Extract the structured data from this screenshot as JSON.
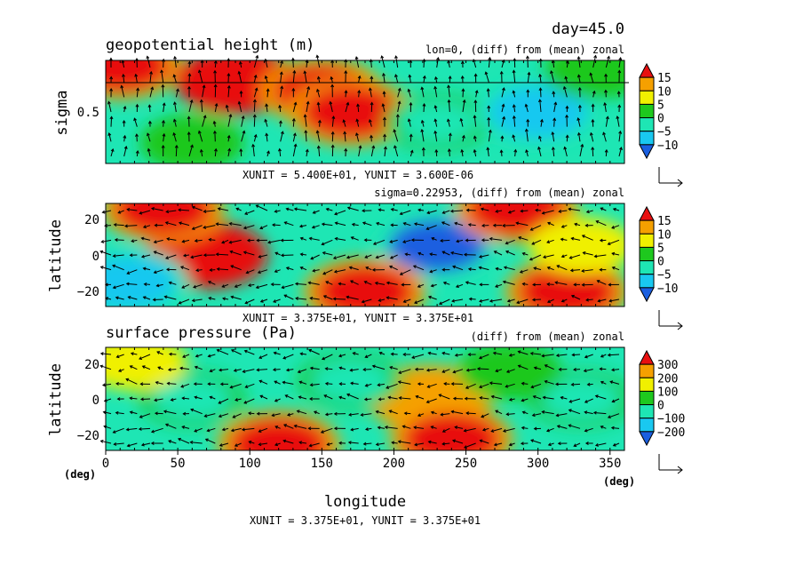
{
  "day_label": "day=45.0",
  "panels": [
    {
      "title": "geopotential height (m)",
      "subtitle": "lon=0, (diff) from (mean) zonal",
      "ylabel": "sigma",
      "yticks": [
        "0.5"
      ],
      "unit_note": "XUNIT = 5.400E+01, YUNIT = 3.600E-06",
      "colorbar_labels": [
        "15",
        "10",
        "5",
        "0",
        "−5",
        "−10"
      ]
    },
    {
      "title": "",
      "subtitle": "sigma=0.22953, (diff) from (mean) zonal",
      "ylabel": "latitude",
      "yticks": [
        "20",
        "0",
        "−20"
      ],
      "unit_note": "XUNIT = 3.375E+01, YUNIT = 3.375E+01",
      "colorbar_labels": [
        "15",
        "10",
        "5",
        "0",
        "−5",
        "−10"
      ]
    },
    {
      "title": "surface pressure (Pa)",
      "subtitle": "(diff) from (mean) zonal",
      "ylabel": "latitude",
      "yticks": [
        "20",
        "0",
        "−20"
      ],
      "unit_note": "XUNIT = 3.375E+01, YUNIT = 3.375E+01",
      "colorbar_labels": [
        "300",
        "200",
        "100",
        "0",
        "−100",
        "−200"
      ]
    }
  ],
  "xaxis": {
    "label": "longitude",
    "unit_left": "(deg)",
    "unit_right": "(deg)",
    "ticks": [
      "0",
      "50",
      "100",
      "150",
      "200",
      "250",
      "300",
      "350"
    ]
  },
  "colors": {
    "c1": "#1a5fe0",
    "c2": "#19c8f0",
    "c3": "#1ee6b4",
    "c4": "#1ec81e",
    "c5": "#f0f000",
    "c6": "#f5a000",
    "c7": "#e81010"
  },
  "chart_data": [
    {
      "type": "heatmap",
      "title": "geopotential height (m)",
      "ylabel": "sigma",
      "xlim": [
        0,
        360
      ],
      "levels": [
        -15,
        -10,
        -5,
        0,
        5,
        10,
        15
      ],
      "features": [
        {
          "x": 10,
          "y": 0.95,
          "value": 15
        },
        {
          "x": 90,
          "y": 0.8,
          "value": 18
        },
        {
          "x": 150,
          "y": 0.7,
          "value": 15
        },
        {
          "x": 170,
          "y": 0.5,
          "value": 12
        },
        {
          "x": 230,
          "y": 0.4,
          "value": -5
        },
        {
          "x": 300,
          "y": 0.5,
          "value": -10
        },
        {
          "x": 60,
          "y": 0.2,
          "value": -2
        },
        {
          "x": 340,
          "y": 0.9,
          "value": 0
        }
      ]
    },
    {
      "type": "heatmap",
      "title": "",
      "ylabel": "latitude",
      "xlim": [
        0,
        360
      ],
      "ylim": [
        -28,
        28
      ],
      "levels": [
        -15,
        -10,
        -5,
        0,
        5,
        10,
        15
      ],
      "features": [
        {
          "x": 70,
          "y": 0,
          "value": 17
        },
        {
          "x": 40,
          "y": 25,
          "value": 15
        },
        {
          "x": 230,
          "y": 5,
          "value": -15
        },
        {
          "x": 180,
          "y": -20,
          "value": 15
        },
        {
          "x": 320,
          "y": -20,
          "value": 15
        },
        {
          "x": 285,
          "y": 25,
          "value": 12
        },
        {
          "x": 15,
          "y": -15,
          "value": -12
        },
        {
          "x": 330,
          "y": 5,
          "value": 2
        }
      ]
    },
    {
      "type": "heatmap",
      "title": "surface pressure (Pa)",
      "ylabel": "latitude",
      "xlim": [
        0,
        360
      ],
      "ylim": [
        -28,
        28
      ],
      "levels": [
        -300,
        -200,
        -100,
        0,
        100,
        200,
        300
      ],
      "features": [
        {
          "x": 225,
          "y": 0,
          "value": 200
        },
        {
          "x": 240,
          "y": -22,
          "value": 320
        },
        {
          "x": 120,
          "y": -25,
          "value": 330
        },
        {
          "x": 60,
          "y": 0,
          "value": -150
        },
        {
          "x": 170,
          "y": 10,
          "value": -120
        },
        {
          "x": 330,
          "y": 0,
          "value": -160
        },
        {
          "x": 20,
          "y": 20,
          "value": 50
        },
        {
          "x": 280,
          "y": 15,
          "value": -50
        }
      ]
    }
  ]
}
